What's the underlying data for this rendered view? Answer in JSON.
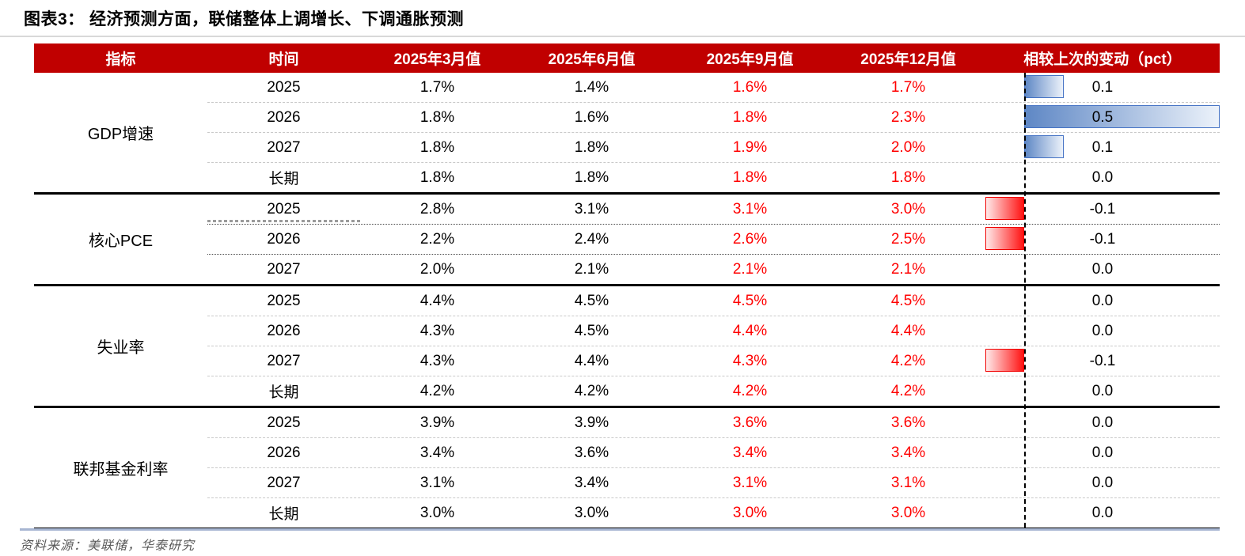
{
  "title": "图表3：  经济预测方面，联储整体上调增长、下调通胀预测",
  "source": "资料来源：美联储，华泰研究",
  "colors": {
    "header_bg": "#C00000",
    "header_text": "#FFFFFF",
    "value_red": "#FF0000",
    "value_black": "#000000",
    "positive_bar_border": "#4472C4",
    "positive_bar_fill": "#5E87C5",
    "negative_bar_border": "#FF0000",
    "negative_bar_fill": "#FF1212",
    "source_text": "#595959",
    "bottom_rule": "#A7B6D2"
  },
  "chart_data": {
    "type": "table",
    "title": "图表3： 经济预测方面，联储整体上调增长、下调通胀预测",
    "columns": [
      "指标",
      "时间",
      "2025年3月值",
      "2025年6月值",
      "2025年9月值",
      "2025年12月值",
      "相较上次的变动（pct）"
    ],
    "red_text_columns": [
      "2025年9月值",
      "2025年12月值"
    ],
    "bar_axis": {
      "min": -0.1,
      "max": 0.5,
      "positive_color": "blue",
      "negative_color": "red"
    },
    "groups": [
      {
        "indicator": "GDP增速",
        "rows": [
          {
            "time": "2025",
            "values": [
              "1.7%",
              "1.4%",
              "1.6%",
              "1.7%"
            ],
            "change": 0.1
          },
          {
            "time": "2026",
            "values": [
              "1.8%",
              "1.6%",
              "1.8%",
              "2.3%"
            ],
            "change": 0.5
          },
          {
            "time": "2027",
            "values": [
              "1.8%",
              "1.8%",
              "1.9%",
              "2.0%"
            ],
            "change": 0.1
          },
          {
            "time": "长期",
            "values": [
              "1.8%",
              "1.8%",
              "1.8%",
              "1.8%"
            ],
            "change": 0.0
          }
        ]
      },
      {
        "indicator": "核心PCE",
        "rows": [
          {
            "time": "2025",
            "values": [
              "2.8%",
              "3.1%",
              "3.1%",
              "3.0%"
            ],
            "change": -0.1
          },
          {
            "time": "2026",
            "values": [
              "2.2%",
              "2.4%",
              "2.6%",
              "2.5%"
            ],
            "change": -0.1
          },
          {
            "time": "2027",
            "values": [
              "2.0%",
              "2.1%",
              "2.1%",
              "2.1%"
            ],
            "change": 0.0
          }
        ]
      },
      {
        "indicator": "失业率",
        "rows": [
          {
            "time": "2025",
            "values": [
              "4.4%",
              "4.5%",
              "4.5%",
              "4.5%"
            ],
            "change": 0.0
          },
          {
            "time": "2026",
            "values": [
              "4.3%",
              "4.5%",
              "4.4%",
              "4.4%"
            ],
            "change": 0.0
          },
          {
            "time": "2027",
            "values": [
              "4.3%",
              "4.4%",
              "4.3%",
              "4.2%"
            ],
            "change": -0.1
          },
          {
            "time": "长期",
            "values": [
              "4.2%",
              "4.2%",
              "4.2%",
              "4.2%"
            ],
            "change": 0.0
          }
        ]
      },
      {
        "indicator": "联邦基金利率",
        "rows": [
          {
            "time": "2025",
            "values": [
              "3.9%",
              "3.9%",
              "3.6%",
              "3.6%"
            ],
            "change": 0.0
          },
          {
            "time": "2026",
            "values": [
              "3.4%",
              "3.6%",
              "3.4%",
              "3.4%"
            ],
            "change": 0.0
          },
          {
            "time": "2027",
            "values": [
              "3.1%",
              "3.4%",
              "3.1%",
              "3.1%"
            ],
            "change": 0.0
          },
          {
            "time": "长期",
            "values": [
              "3.0%",
              "3.0%",
              "3.0%",
              "3.0%"
            ],
            "change": 0.0
          }
        ]
      }
    ]
  }
}
